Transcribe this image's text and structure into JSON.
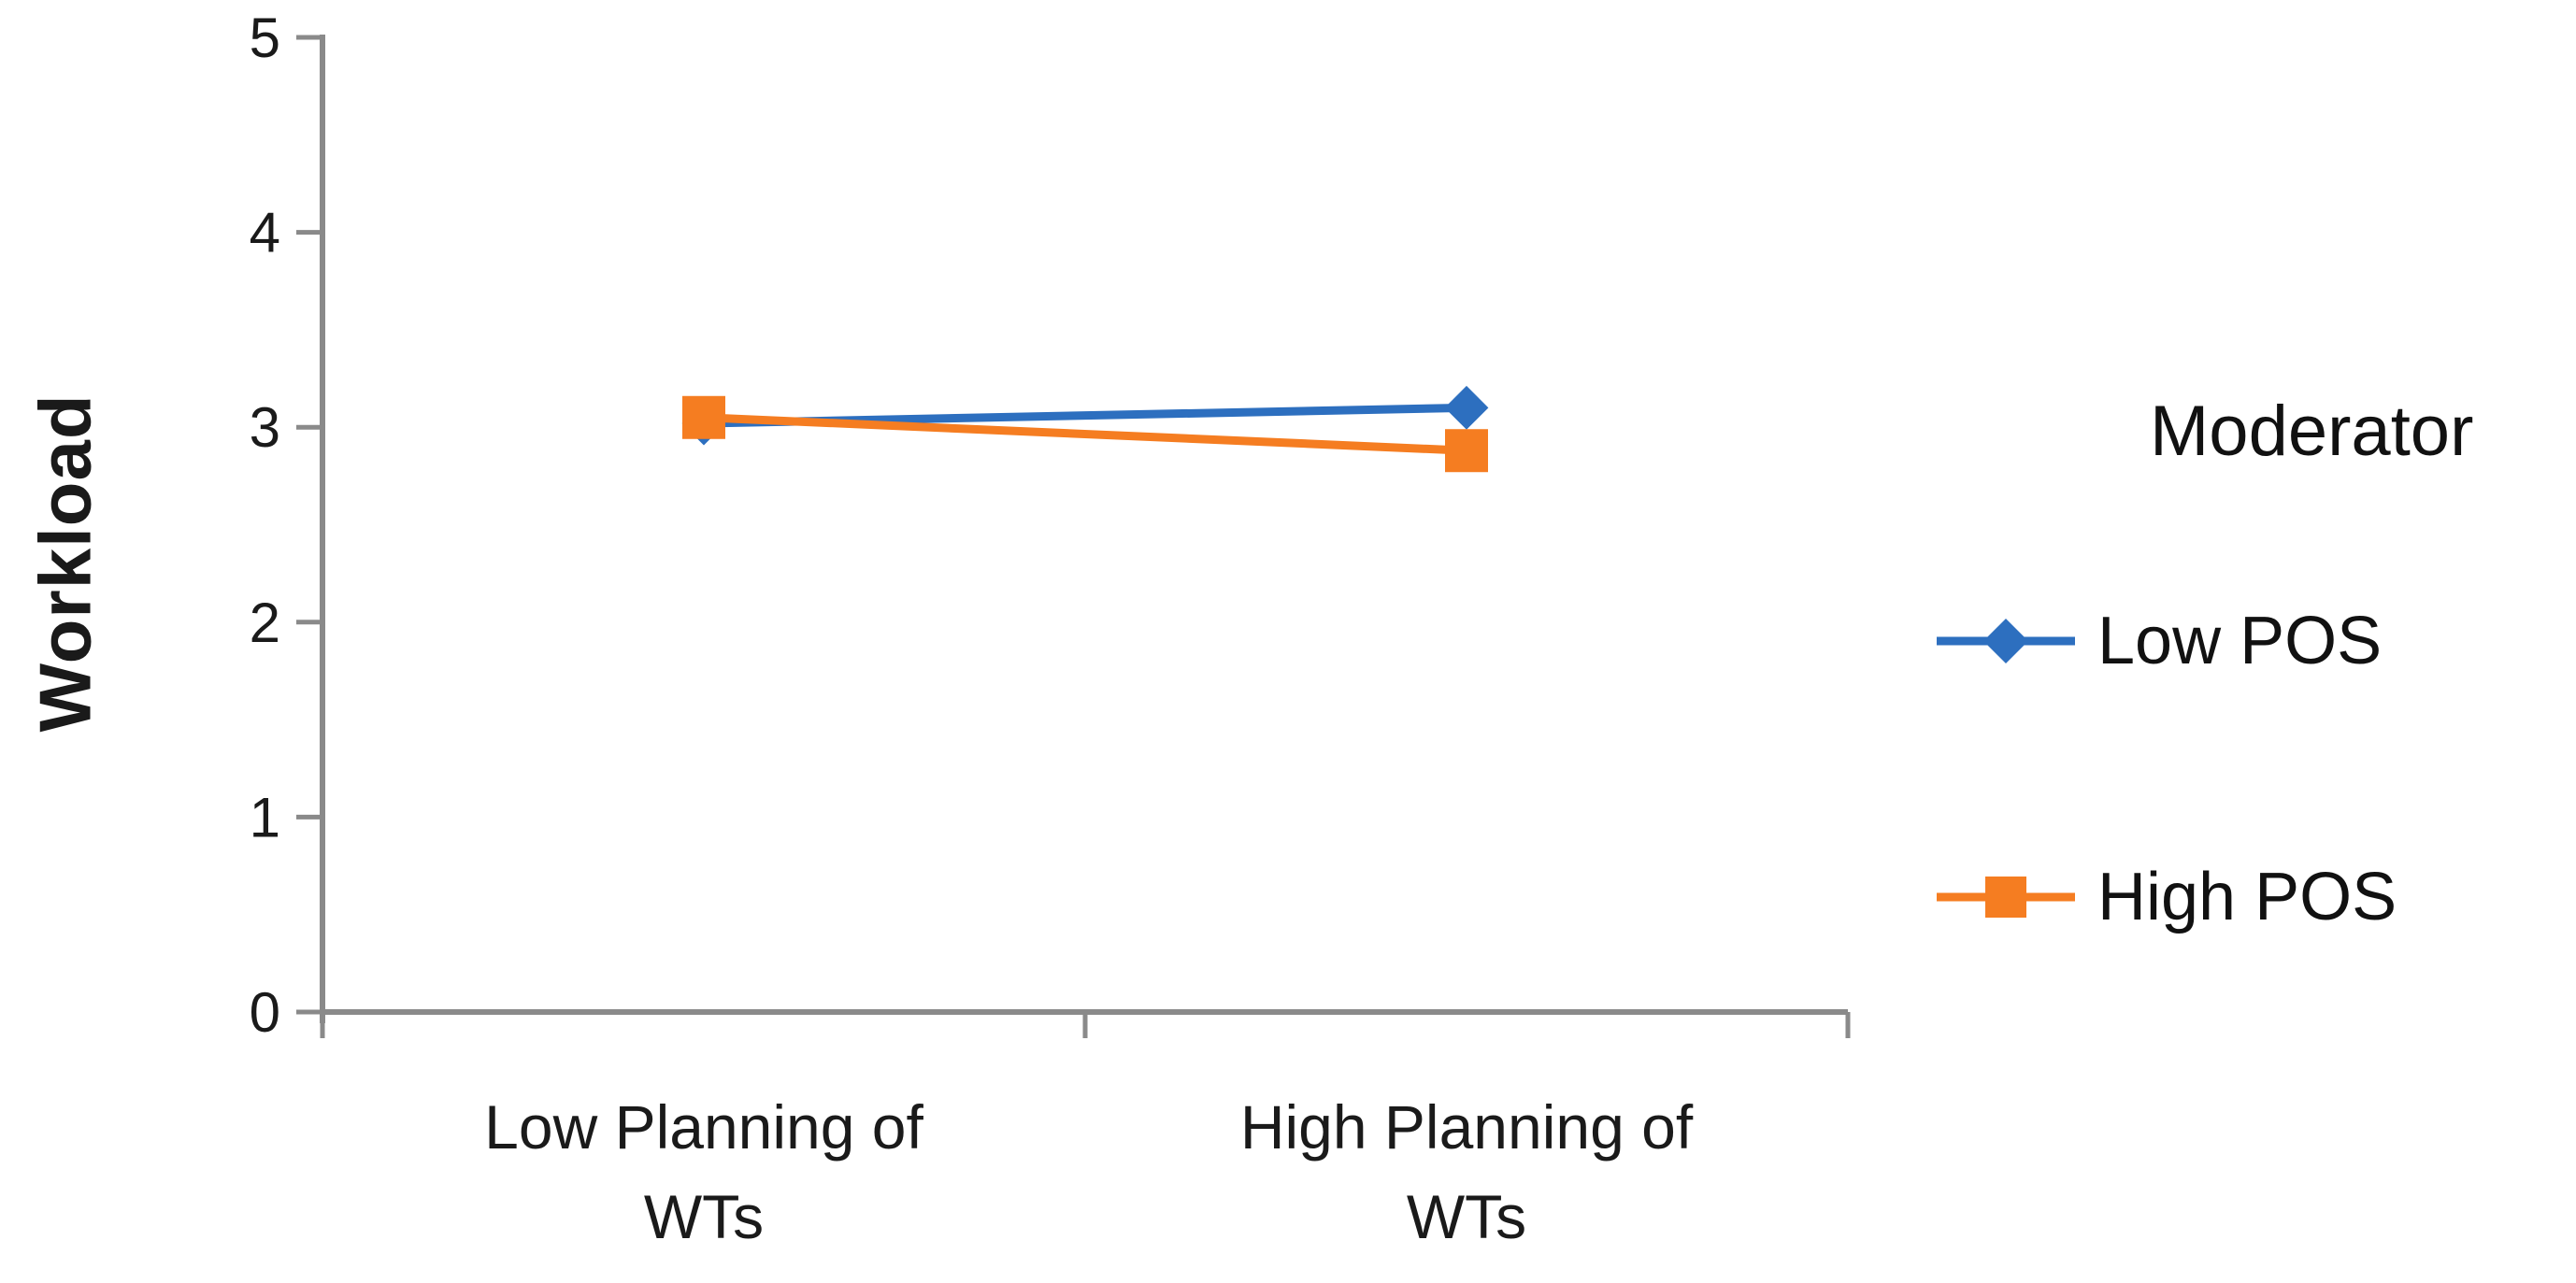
{
  "chart_data": {
    "type": "line",
    "title": "",
    "categories": [
      "Low Planning of WTs",
      "High Planning of WTs"
    ],
    "category_label_lines": [
      [
        "Low Planning of",
        "WTs"
      ],
      [
        "High Planning of",
        "WTs"
      ]
    ],
    "series": [
      {
        "name": "Low POS",
        "color": "#2D6FBF",
        "marker": "diamond",
        "values": [
          3.02,
          3.1
        ]
      },
      {
        "name": "High POS",
        "color": "#F57D21",
        "marker": "square",
        "values": [
          3.05,
          2.88
        ]
      }
    ],
    "xlabel": "",
    "ylabel": "Workload",
    "ylim": [
      0,
      5
    ],
    "y_ticks": [
      0,
      1,
      2,
      3,
      4,
      5
    ],
    "grid": false,
    "legend_position": "right",
    "legend_title": "Moderator",
    "axis_color": "#8A8A8A",
    "tick_label_color": "#1A1A1A",
    "category_label_color": "#1A1A1A"
  },
  "legend": {
    "title": "Moderator",
    "items": [
      {
        "label": "Low POS"
      },
      {
        "label": "High POS"
      }
    ]
  }
}
